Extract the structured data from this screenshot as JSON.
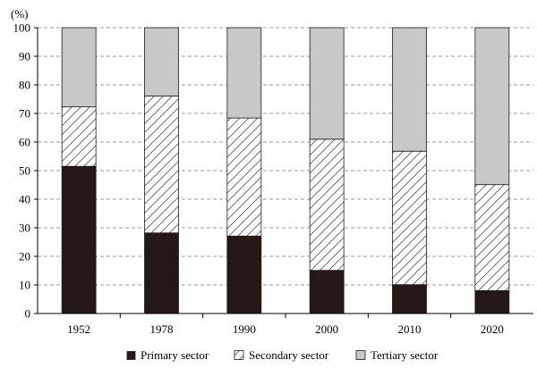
{
  "chart_data": {
    "type": "bar",
    "stacked": true,
    "ylabel": "(%)",
    "ylim": [
      0,
      100
    ],
    "yticks": [
      0,
      10,
      20,
      30,
      40,
      50,
      60,
      70,
      80,
      90,
      100
    ],
    "categories": [
      "1952",
      "1978",
      "1990",
      "2000",
      "2010",
      "2020"
    ],
    "series": [
      {
        "name": "Primary sector",
        "values": [
          51.5,
          28.2,
          27.1,
          15.1,
          10.1,
          8.0
        ],
        "color": "#231815",
        "pattern": "solid"
      },
      {
        "name": "Secondary sector",
        "values": [
          20.8,
          47.9,
          41.3,
          45.9,
          46.7,
          37.1
        ],
        "color": "#ffffff",
        "pattern": "hatch"
      },
      {
        "name": "Tertiary sector",
        "values": [
          27.7,
          23.9,
          31.6,
          39.0,
          43.2,
          54.9
        ],
        "color": "#c8c8c8",
        "pattern": "solid"
      }
    ],
    "grid": true,
    "grid_style": "dashed",
    "legend_position": "bottom"
  }
}
